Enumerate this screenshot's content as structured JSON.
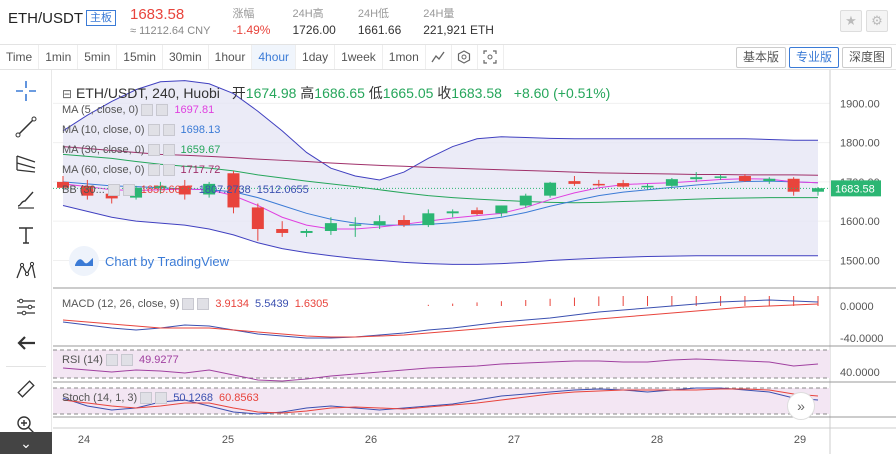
{
  "ticker": {
    "pair": "ETH/USDT",
    "badge": "主板",
    "price": "1683.58",
    "cny": "≈ 11212.64 CNY",
    "stats": [
      {
        "label": "涨幅",
        "value": "-1.49%",
        "red": true
      },
      {
        "label": "24H高",
        "value": "1726.00",
        "red": false
      },
      {
        "label": "24H低",
        "value": "1661.66",
        "red": false
      },
      {
        "label": "24H量",
        "value": "221,921 ETH",
        "red": false
      }
    ]
  },
  "toolbar": {
    "timeframes": [
      "Time",
      "1min",
      "5min",
      "15min",
      "30min",
      "1hour",
      "4hour",
      "1day",
      "1week",
      "1mon"
    ],
    "active_timeframe": "4hour",
    "views": [
      "基本版",
      "专业版",
      "深度图"
    ],
    "active_view": "专业版"
  },
  "chart_data": {
    "type": "candlestick",
    "title": "ETH/USDT, 240, Huobi",
    "ohlc": {
      "open_label": "开",
      "open": "1674.98",
      "high_label": "高",
      "high": "1686.65",
      "low_label": "低",
      "low": "1665.05",
      "close_label": "收",
      "close": "1683.58",
      "change": "+8.60 (+0.51%)"
    },
    "indicators": [
      {
        "name": "MA (5, close, 0)",
        "value": "1697.81",
        "color": "#e040e0"
      },
      {
        "name": "MA (10, close, 0)",
        "value": "1698.13",
        "color": "#3b7bd6"
      },
      {
        "name": "MA (30, close, 0)",
        "value": "1659.67",
        "color": "#26a65b"
      },
      {
        "name": "MA (60, close, 0)",
        "value": "1717.72",
        "color": "#a0306a"
      },
      {
        "name": "BB (30...",
        "values": [
          "1659.6697",
          "1807.2738",
          "1512.0655"
        ],
        "color": "#4040c0"
      }
    ],
    "y_ticks": [
      "1900.00",
      "1800.00",
      "1700.00",
      "1600.00",
      "1500.00"
    ],
    "y_range": [
      1440,
      1985
    ],
    "last_price": "1683.58",
    "x_ticks": [
      "24",
      "25",
      "26",
      "27",
      "28",
      "29"
    ],
    "candles": [
      {
        "o": 1700,
        "h": 1715,
        "l": 1690,
        "c": 1685
      },
      {
        "o": 1690,
        "h": 1705,
        "l": 1655,
        "c": 1665
      },
      {
        "o": 1670,
        "h": 1690,
        "l": 1645,
        "c": 1658
      },
      {
        "o": 1660,
        "h": 1690,
        "l": 1655,
        "c": 1685
      },
      {
        "o": 1685,
        "h": 1700,
        "l": 1670,
        "c": 1690
      },
      {
        "o": 1690,
        "h": 1705,
        "l": 1655,
        "c": 1668
      },
      {
        "o": 1668,
        "h": 1700,
        "l": 1660,
        "c": 1695
      },
      {
        "o": 1722,
        "h": 1728,
        "l": 1620,
        "c": 1635
      },
      {
        "o": 1635,
        "h": 1645,
        "l": 1550,
        "c": 1580
      },
      {
        "o": 1580,
        "h": 1600,
        "l": 1560,
        "c": 1570
      },
      {
        "o": 1570,
        "h": 1580,
        "l": 1560,
        "c": 1575
      },
      {
        "o": 1575,
        "h": 1610,
        "l": 1565,
        "c": 1595
      },
      {
        "o": 1590,
        "h": 1610,
        "l": 1560,
        "c": 1592
      },
      {
        "o": 1590,
        "h": 1615,
        "l": 1580,
        "c": 1600
      },
      {
        "o": 1603,
        "h": 1615,
        "l": 1585,
        "c": 1590
      },
      {
        "o": 1590,
        "h": 1630,
        "l": 1585,
        "c": 1620
      },
      {
        "o": 1620,
        "h": 1630,
        "l": 1610,
        "c": 1625
      },
      {
        "o": 1628,
        "h": 1635,
        "l": 1615,
        "c": 1618
      },
      {
        "o": 1620,
        "h": 1640,
        "l": 1612,
        "c": 1640
      },
      {
        "o": 1640,
        "h": 1670,
        "l": 1635,
        "c": 1665
      },
      {
        "o": 1665,
        "h": 1700,
        "l": 1660,
        "c": 1698
      },
      {
        "o": 1702,
        "h": 1715,
        "l": 1690,
        "c": 1695
      },
      {
        "o": 1695,
        "h": 1705,
        "l": 1688,
        "c": 1693
      },
      {
        "o": 1697,
        "h": 1705,
        "l": 1685,
        "c": 1688
      },
      {
        "o": 1688,
        "h": 1695,
        "l": 1680,
        "c": 1690
      },
      {
        "o": 1690,
        "h": 1710,
        "l": 1686,
        "c": 1707
      },
      {
        "o": 1707,
        "h": 1725,
        "l": 1700,
        "c": 1712
      },
      {
        "o": 1712,
        "h": 1718,
        "l": 1705,
        "c": 1714
      },
      {
        "o": 1715,
        "h": 1720,
        "l": 1700,
        "c": 1702
      },
      {
        "o": 1702,
        "h": 1712,
        "l": 1695,
        "c": 1708
      },
      {
        "o": 1708,
        "h": 1712,
        "l": 1665,
        "c": 1675
      },
      {
        "o": 1675,
        "h": 1687,
        "l": 1665,
        "c": 1684
      }
    ],
    "macd": {
      "name": "MACD (12, 26, close, 9)",
      "values": [
        "3.9134",
        "5.5439",
        "1.6305"
      ],
      "y_ticks": [
        "0.0000",
        "-40.0000"
      ]
    },
    "rsi": {
      "name": "RSI (14)",
      "value": "49.9277",
      "y_ticks": [
        "40.0000"
      ]
    },
    "stoch": {
      "name": "Stoch (14, 1, 3)",
      "values": [
        "50.1268",
        "60.8563"
      ]
    }
  },
  "watermark": "Chart by TradingView"
}
